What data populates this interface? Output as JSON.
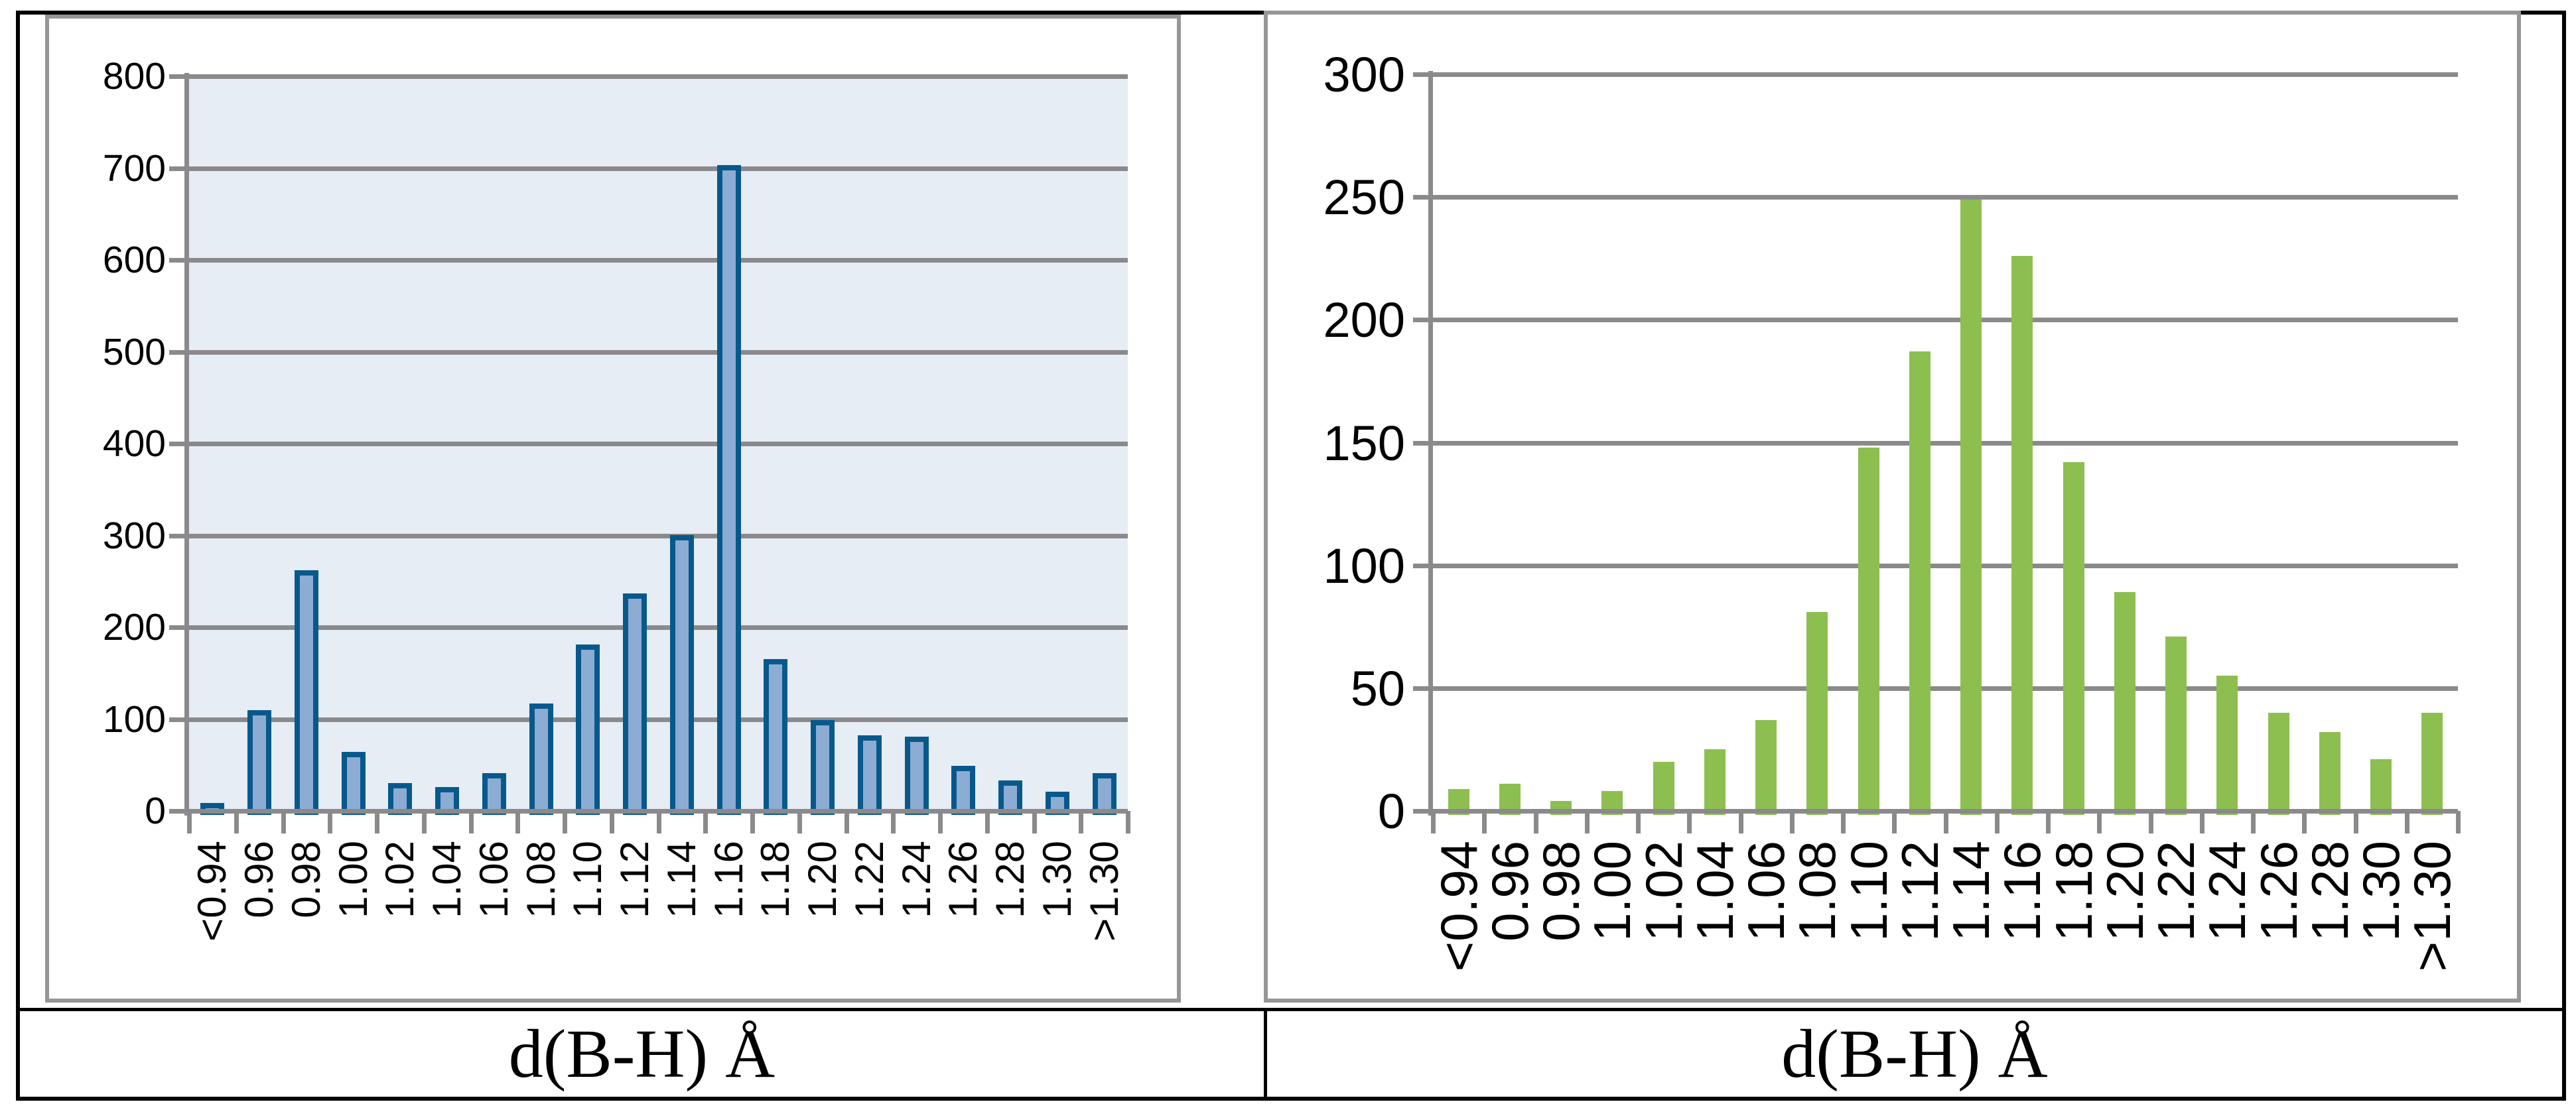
{
  "captions": {
    "left": "d(B-H) Å",
    "right": "d(B-H) Å"
  },
  "frame_colors": {
    "table_border": "#000000",
    "chart_border": "#969696",
    "gridline": "#8a8a8c"
  },
  "chart_data": [
    {
      "type": "bar",
      "position": "left",
      "title": "",
      "xlabel": "d(B-H) Å",
      "ylabel": "",
      "categories": [
        "<0.94",
        "0.96",
        "0.98",
        "1.00",
        "1.02",
        "1.04",
        "1.06",
        "1.08",
        "1.10",
        "1.12",
        "1.14",
        "1.16",
        "1.18",
        "1.20",
        "1.22",
        "1.24",
        "1.26",
        "1.28",
        "1.30",
        ">1.30"
      ],
      "values": [
        9,
        110,
        262,
        64,
        30,
        26,
        41,
        117,
        181,
        237,
        300,
        703,
        165,
        99,
        82,
        81,
        49,
        33,
        21,
        41
      ],
      "ylim": [
        0,
        800
      ],
      "ytick_step": 100,
      "ytick_labels": [
        "0",
        "100",
        "200",
        "300",
        "400",
        "500",
        "600",
        "700",
        "800"
      ],
      "grid": true,
      "legend": "none",
      "bar_fill": "#8cacd4",
      "bar_border": "#07598c",
      "plot_bg": "#e7edf5"
    },
    {
      "type": "bar",
      "position": "right",
      "title": "",
      "xlabel": "d(B-H) Å",
      "ylabel": "",
      "categories": [
        "<0.94",
        "0.96",
        "0.98",
        "1.00",
        "1.02",
        "1.04",
        "1.06",
        "1.08",
        "1.10",
        "1.12",
        "1.14",
        "1.16",
        "1.18",
        "1.20",
        "1.22",
        "1.24",
        "1.26",
        "1.28",
        "1.30",
        ">1.30"
      ],
      "values": [
        9,
        11,
        4,
        8,
        20,
        25,
        37,
        81,
        148,
        187,
        249,
        226,
        142,
        89,
        71,
        55,
        40,
        32,
        21,
        40
      ],
      "ylim": [
        0,
        300
      ],
      "ytick_step": 50,
      "ytick_labels": [
        "0",
        "50",
        "100",
        "150",
        "200",
        "250",
        "300"
      ],
      "grid": true,
      "legend": "none",
      "bar_fill": "#8dbe50",
      "bar_border": "none",
      "plot_bg": "#ffffff"
    }
  ]
}
